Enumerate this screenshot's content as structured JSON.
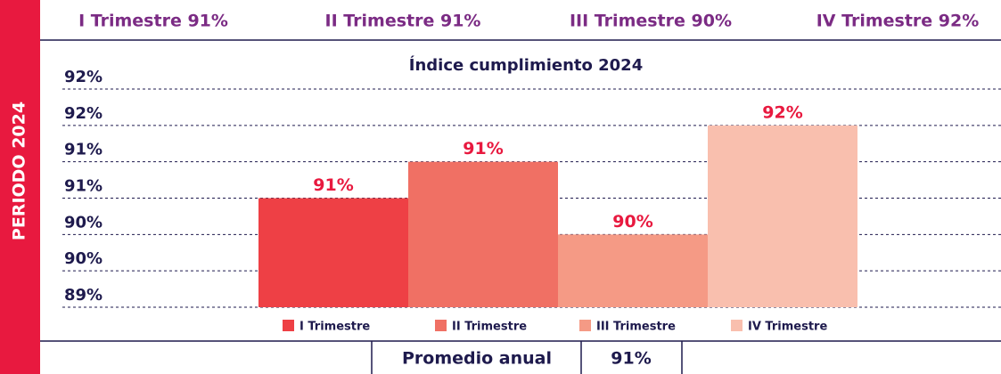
{
  "header": [
    "I Trimestre 91%",
    "II Trimestre 91%",
    "III Trimestre 90%",
    "IV Trimestre 92%"
  ],
  "side_label": "PERIODO 2024",
  "chart_data": {
    "type": "bar",
    "title": "Índice cumplimiento 2024",
    "categories": [
      "I Trimestre",
      "II Trimestre",
      "III Trimestre",
      "IV Trimestre"
    ],
    "values": [
      90.5,
      91,
      90,
      91.5
    ],
    "value_labels": [
      "91%",
      "91%",
      "90%",
      "92%"
    ],
    "colors": [
      "#ee4045",
      "#f07064",
      "#f59a85",
      "#f9bfae"
    ],
    "ylim": [
      89,
      92
    ],
    "yticks": [
      {
        "value": 89,
        "label": "89%"
      },
      {
        "value": 89.5,
        "label": "90%"
      },
      {
        "value": 90,
        "label": "90%"
      },
      {
        "value": 90.5,
        "label": "91%"
      },
      {
        "value": 91,
        "label": "91%"
      },
      {
        "value": 91.5,
        "label": "92%"
      },
      {
        "value": 92,
        "label": "92%"
      }
    ],
    "grid": true
  },
  "footer": {
    "label": "Promedio anual",
    "value": "91%"
  }
}
